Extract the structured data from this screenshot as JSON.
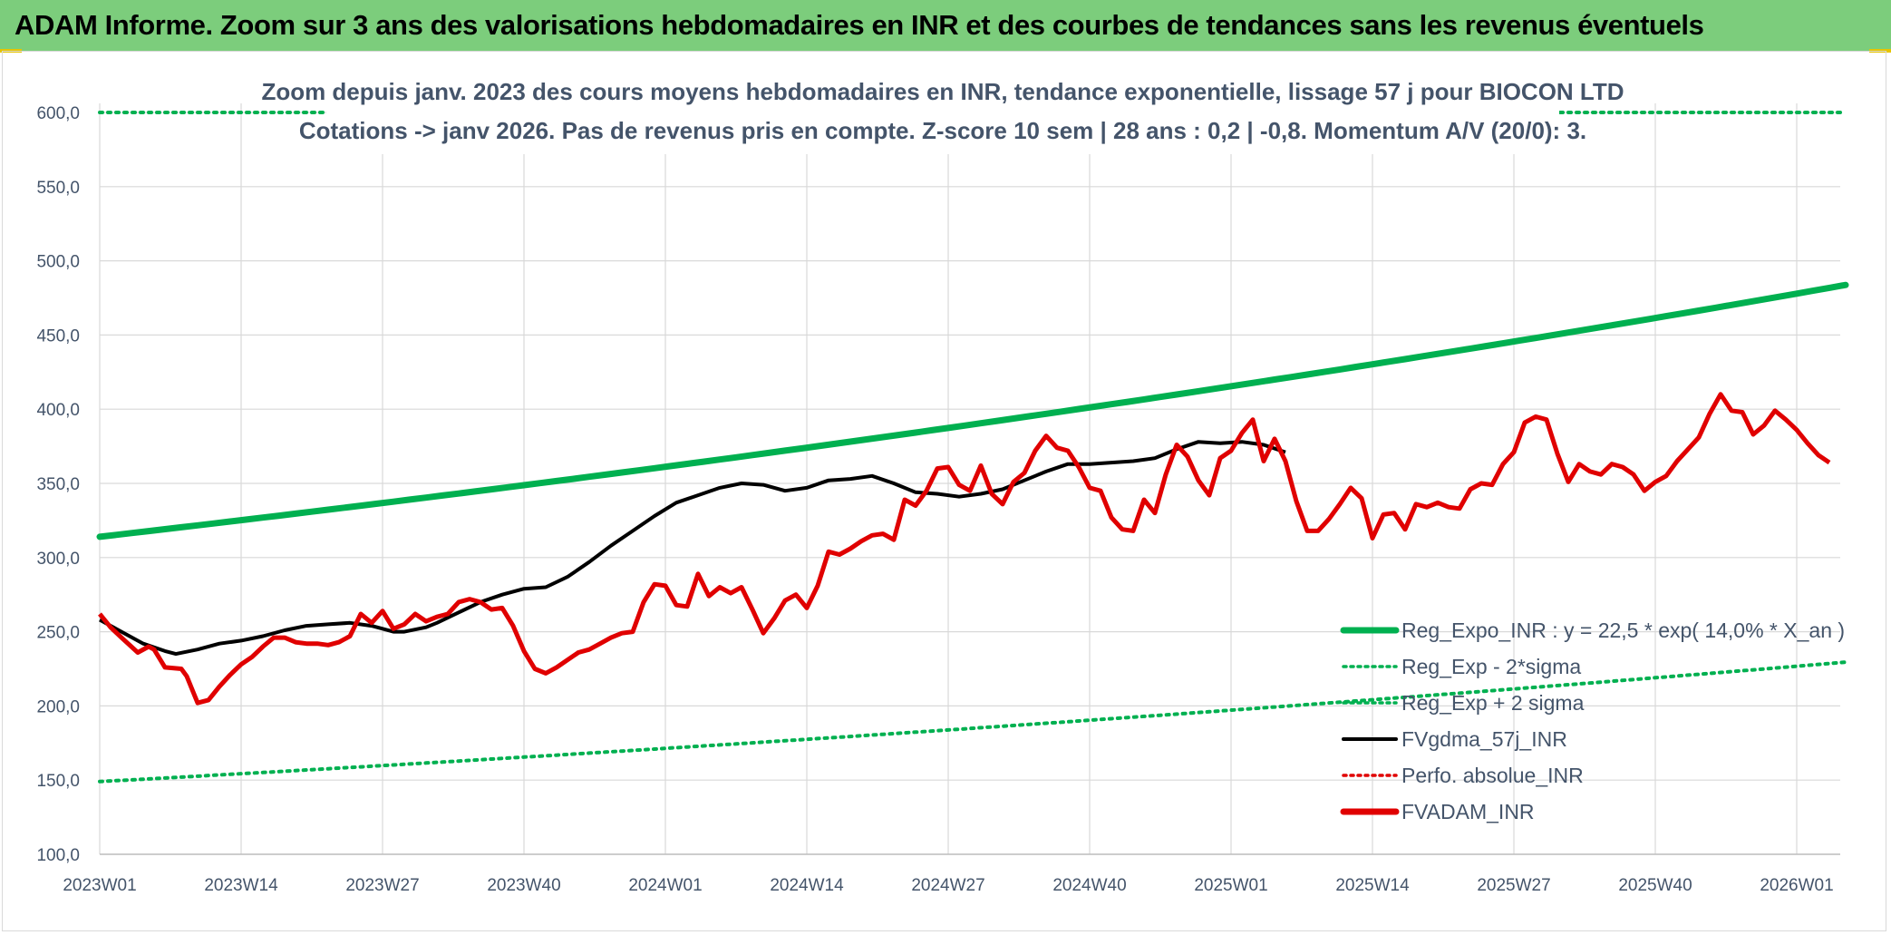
{
  "header": {
    "title": "ADAM Informe. Zoom sur 3 ans des valorisations hebdomadaires en INR et des courbes de tendances sans les revenus éventuels"
  },
  "colors": {
    "banner": "#7ccd7c",
    "trend": "#00b050",
    "smooth": "#000000",
    "adam": "#e00000",
    "perfo": "#e00000",
    "text": "#44546a",
    "grid": "#d9d9d9"
  },
  "chart_data": {
    "type": "line",
    "title_line1": "Zoom depuis janv. 2023 des cours moyens hebdomadaires en INR, tendance exponentielle, lissage 57 j pour BIOCON LTD",
    "title_line2": "Cotations -> janv 2026. Pas de revenus pris en compte. Z-score 10 sem | 28 ans : 0,2 | -0,8. Momentum A/V (20/0): 3.",
    "ylim": [
      100,
      600
    ],
    "yticks": [
      "100,0",
      "150,0",
      "200,0",
      "250,0",
      "300,0",
      "350,0",
      "400,0",
      "450,0",
      "500,0",
      "550,0",
      "600,0"
    ],
    "xticks": [
      "2023W01",
      "2023W14",
      "2023W27",
      "2023W40",
      "2024W01",
      "2024W14",
      "2024W27",
      "2024W40",
      "2025W01",
      "2025W14",
      "2025W27",
      "2025W40",
      "2026W01"
    ],
    "x_week_start": 1,
    "x_week_end": 162,
    "grid": true,
    "legend_position": "bottom-right",
    "legend": [
      {
        "key": "reg_expo",
        "label": "Reg_Expo_INR : y = 22,5 * exp( 14,0% *  X_an )",
        "style": "solid-thick"
      },
      {
        "key": "reg_minus",
        "label": "Reg_Exp - 2*sigma",
        "style": "dotted"
      },
      {
        "key": "reg_plus",
        "label": "Reg_Exp + 2 sigma",
        "style": "dotted"
      },
      {
        "key": "fvgdma",
        "label": "FVgdma_57j_INR",
        "style": "solid"
      },
      {
        "key": "perfo",
        "label": "Perfo. absolue_INR",
        "style": "dotted"
      },
      {
        "key": "fvadam",
        "label": "FVADAM_INR",
        "style": "solid-thick"
      }
    ],
    "series": {
      "reg_expo": {
        "start": 314,
        "growth": 0.14
      },
      "reg_minus": {
        "start": 149,
        "growth": 0.14
      },
      "reg_plus": {
        "value": 600
      },
      "fvgdma": [
        [
          1,
          258
        ],
        [
          5,
          250
        ],
        [
          9,
          242
        ],
        [
          13,
          237
        ],
        [
          15,
          235
        ],
        [
          19,
          238
        ],
        [
          23,
          242
        ],
        [
          27,
          244
        ],
        [
          31,
          247
        ],
        [
          35,
          251
        ],
        [
          39,
          254
        ],
        [
          43,
          255
        ],
        [
          47,
          256
        ],
        [
          51,
          254
        ],
        [
          55,
          250
        ],
        [
          57,
          250
        ],
        [
          61,
          253
        ],
        [
          63,
          256
        ],
        [
          67,
          263
        ],
        [
          71,
          270
        ],
        [
          75,
          275
        ],
        [
          79,
          279
        ],
        [
          83,
          280
        ],
        [
          87,
          287
        ],
        [
          91,
          297
        ],
        [
          95,
          308
        ],
        [
          99,
          318
        ],
        [
          103,
          328
        ],
        [
          107,
          337
        ],
        [
          111,
          342
        ],
        [
          115,
          347
        ],
        [
          119,
          350
        ],
        [
          123,
          349
        ],
        [
          127,
          345
        ],
        [
          131,
          347
        ],
        [
          135,
          352
        ],
        [
          139,
          353
        ],
        [
          143,
          355
        ],
        [
          147,
          350
        ],
        [
          151,
          344
        ],
        [
          155,
          343
        ],
        [
          159,
          341
        ],
        [
          163,
          343
        ],
        [
          167,
          346
        ],
        [
          171,
          352
        ],
        [
          175,
          358
        ],
        [
          179,
          363
        ],
        [
          183,
          363
        ],
        [
          187,
          364
        ],
        [
          191,
          365
        ],
        [
          195,
          367
        ],
        [
          199,
          373
        ],
        [
          203,
          378
        ],
        [
          207,
          377
        ],
        [
          211,
          378
        ],
        [
          215,
          376
        ],
        [
          219,
          371
        ]
      ],
      "fvadam": [
        [
          1,
          262
        ],
        [
          3,
          253
        ],
        [
          5,
          246
        ],
        [
          8,
          236
        ],
        [
          10,
          240
        ],
        [
          11,
          238
        ],
        [
          13,
          226
        ],
        [
          16,
          225
        ],
        [
          17,
          220
        ],
        [
          19,
          202
        ],
        [
          21,
          204
        ],
        [
          23,
          213
        ],
        [
          25,
          221
        ],
        [
          27,
          228
        ],
        [
          29,
          233
        ],
        [
          31,
          240
        ],
        [
          33,
          246
        ],
        [
          35,
          246
        ],
        [
          37,
          243
        ],
        [
          39,
          242
        ],
        [
          41,
          242
        ],
        [
          43,
          241
        ],
        [
          45,
          243
        ],
        [
          47,
          247
        ],
        [
          49,
          262
        ],
        [
          51,
          256
        ],
        [
          53,
          264
        ],
        [
          55,
          252
        ],
        [
          57,
          255
        ],
        [
          59,
          262
        ],
        [
          61,
          257
        ],
        [
          63,
          260
        ],
        [
          65,
          262
        ],
        [
          67,
          270
        ],
        [
          69,
          272
        ],
        [
          71,
          270
        ],
        [
          73,
          265
        ],
        [
          75,
          266
        ],
        [
          77,
          254
        ],
        [
          79,
          237
        ],
        [
          81,
          225
        ],
        [
          83,
          222
        ],
        [
          85,
          226
        ],
        [
          87,
          231
        ],
        [
          89,
          236
        ],
        [
          91,
          238
        ],
        [
          93,
          242
        ],
        [
          95,
          246
        ],
        [
          97,
          249
        ],
        [
          99,
          250
        ],
        [
          101,
          270
        ],
        [
          103,
          282
        ],
        [
          105,
          281
        ],
        [
          107,
          268
        ],
        [
          109,
          267
        ],
        [
          111,
          289
        ],
        [
          113,
          274
        ],
        [
          115,
          280
        ],
        [
          117,
          276
        ],
        [
          119,
          280
        ],
        [
          121,
          265
        ],
        [
          123,
          249
        ],
        [
          125,
          259
        ],
        [
          127,
          271
        ],
        [
          129,
          275
        ],
        [
          131,
          266
        ],
        [
          133,
          281
        ],
        [
          135,
          304
        ],
        [
          137,
          302
        ],
        [
          139,
          306
        ],
        [
          141,
          311
        ],
        [
          143,
          315
        ],
        [
          145,
          316
        ],
        [
          147,
          312
        ],
        [
          149,
          339
        ],
        [
          151,
          335
        ],
        [
          153,
          345
        ],
        [
          155,
          360
        ],
        [
          157,
          361
        ],
        [
          159,
          349
        ],
        [
          161,
          345
        ],
        [
          163,
          362
        ],
        [
          165,
          343
        ],
        [
          167,
          336
        ],
        [
          169,
          351
        ],
        [
          171,
          357
        ],
        [
          173,
          372
        ],
        [
          175,
          382
        ],
        [
          177,
          374
        ],
        [
          179,
          372
        ],
        [
          181,
          361
        ],
        [
          183,
          347
        ],
        [
          185,
          345
        ],
        [
          187,
          327
        ],
        [
          189,
          319
        ],
        [
          191,
          318
        ],
        [
          193,
          339
        ],
        [
          195,
          330
        ],
        [
          197,
          356
        ],
        [
          199,
          376
        ],
        [
          201,
          368
        ],
        [
          203,
          352
        ],
        [
          205,
          342
        ],
        [
          207,
          367
        ],
        [
          209,
          372
        ],
        [
          211,
          384
        ],
        [
          213,
          393
        ],
        [
          215,
          365
        ],
        [
          217,
          380
        ],
        [
          219,
          365
        ],
        [
          221,
          338
        ],
        [
          223,
          318
        ],
        [
          225,
          318
        ],
        [
          227,
          326
        ],
        [
          229,
          336
        ],
        [
          231,
          347
        ],
        [
          233,
          340
        ],
        [
          235,
          313
        ],
        [
          237,
          329
        ],
        [
          239,
          330
        ],
        [
          241,
          319
        ],
        [
          243,
          336
        ],
        [
          245,
          334
        ],
        [
          247,
          337
        ],
        [
          249,
          334
        ],
        [
          251,
          333
        ],
        [
          253,
          346
        ],
        [
          255,
          350
        ],
        [
          257,
          349
        ],
        [
          259,
          363
        ],
        [
          261,
          371
        ],
        [
          263,
          391
        ],
        [
          265,
          395
        ],
        [
          267,
          393
        ],
        [
          269,
          370
        ],
        [
          271,
          351
        ],
        [
          273,
          363
        ],
        [
          275,
          358
        ],
        [
          277,
          356
        ],
        [
          279,
          363
        ],
        [
          281,
          361
        ],
        [
          283,
          356
        ],
        [
          285,
          345
        ],
        [
          287,
          351
        ],
        [
          289,
          355
        ],
        [
          291,
          365
        ],
        [
          293,
          373
        ],
        [
          295,
          381
        ],
        [
          297,
          397
        ],
        [
          299,
          410
        ],
        [
          301,
          399
        ],
        [
          303,
          398
        ],
        [
          305,
          383
        ],
        [
          307,
          389
        ],
        [
          309,
          399
        ],
        [
          311,
          393
        ],
        [
          313,
          386
        ],
        [
          315,
          377
        ],
        [
          317,
          369
        ],
        [
          319,
          364
        ]
      ]
    }
  }
}
